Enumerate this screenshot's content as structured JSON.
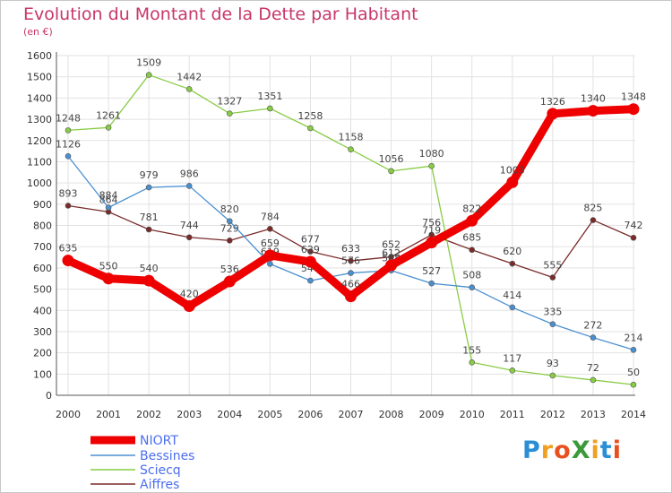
{
  "title": "Evolution du Montant de la Dette par Habitant",
  "subtitle": "(en €)",
  "logo": {
    "text": "Proxiti",
    "letters": [
      {
        "ch": "P",
        "color": "#2b8fd6"
      },
      {
        "ch": "r",
        "color": "#f0a020"
      },
      {
        "ch": "o",
        "color": "#e85020"
      },
      {
        "ch": "X",
        "color": "#3a9a3a"
      },
      {
        "ch": "i",
        "color": "#f0a020"
      },
      {
        "ch": "t",
        "color": "#2b8fd6"
      },
      {
        "ch": "i",
        "color": "#e85020"
      }
    ]
  },
  "chart_data": {
    "type": "line",
    "categories": [
      "2000",
      "2001",
      "2002",
      "2003",
      "2004",
      "2005",
      "2006",
      "2007",
      "2008",
      "2009",
      "2010",
      "2011",
      "2012",
      "2013",
      "2014"
    ],
    "y_ticks": [
      0,
      100,
      200,
      300,
      400,
      500,
      600,
      700,
      800,
      900,
      1000,
      1100,
      1200,
      1300,
      1400,
      1500,
      1600
    ],
    "ylim": [
      0,
      1600
    ],
    "grid": true,
    "legend_position": "bottom-left",
    "series": [
      {
        "name": "Aiffres",
        "color": "#7a2a2a",
        "values": [
          893,
          864,
          781,
          744,
          729,
          784,
          677,
          633,
          652,
          756,
          685,
          620,
          555,
          825,
          742
        ]
      },
      {
        "name": "Sciecq",
        "color": "#88cc44",
        "values": [
          1248,
          1261,
          1509,
          1442,
          1327,
          1351,
          1258,
          1158,
          1056,
          1080,
          155,
          117,
          93,
          72,
          50
        ]
      },
      {
        "name": "Bessines",
        "color": "#4a90d0",
        "values": [
          1126,
          884,
          979,
          986,
          820,
          619,
          540,
          576,
          588,
          527,
          508,
          414,
          335,
          272,
          214
        ]
      },
      {
        "name": "NIORT",
        "color": "#ee0000",
        "values": [
          635,
          550,
          540,
          420,
          536,
          659,
          629,
          466,
          612,
          719,
          822,
          1003,
          1326,
          1340,
          1348
        ]
      }
    ],
    "legend_order": [
      "NIORT",
      "Bessines",
      "Sciecq",
      "Aiffres"
    ]
  }
}
